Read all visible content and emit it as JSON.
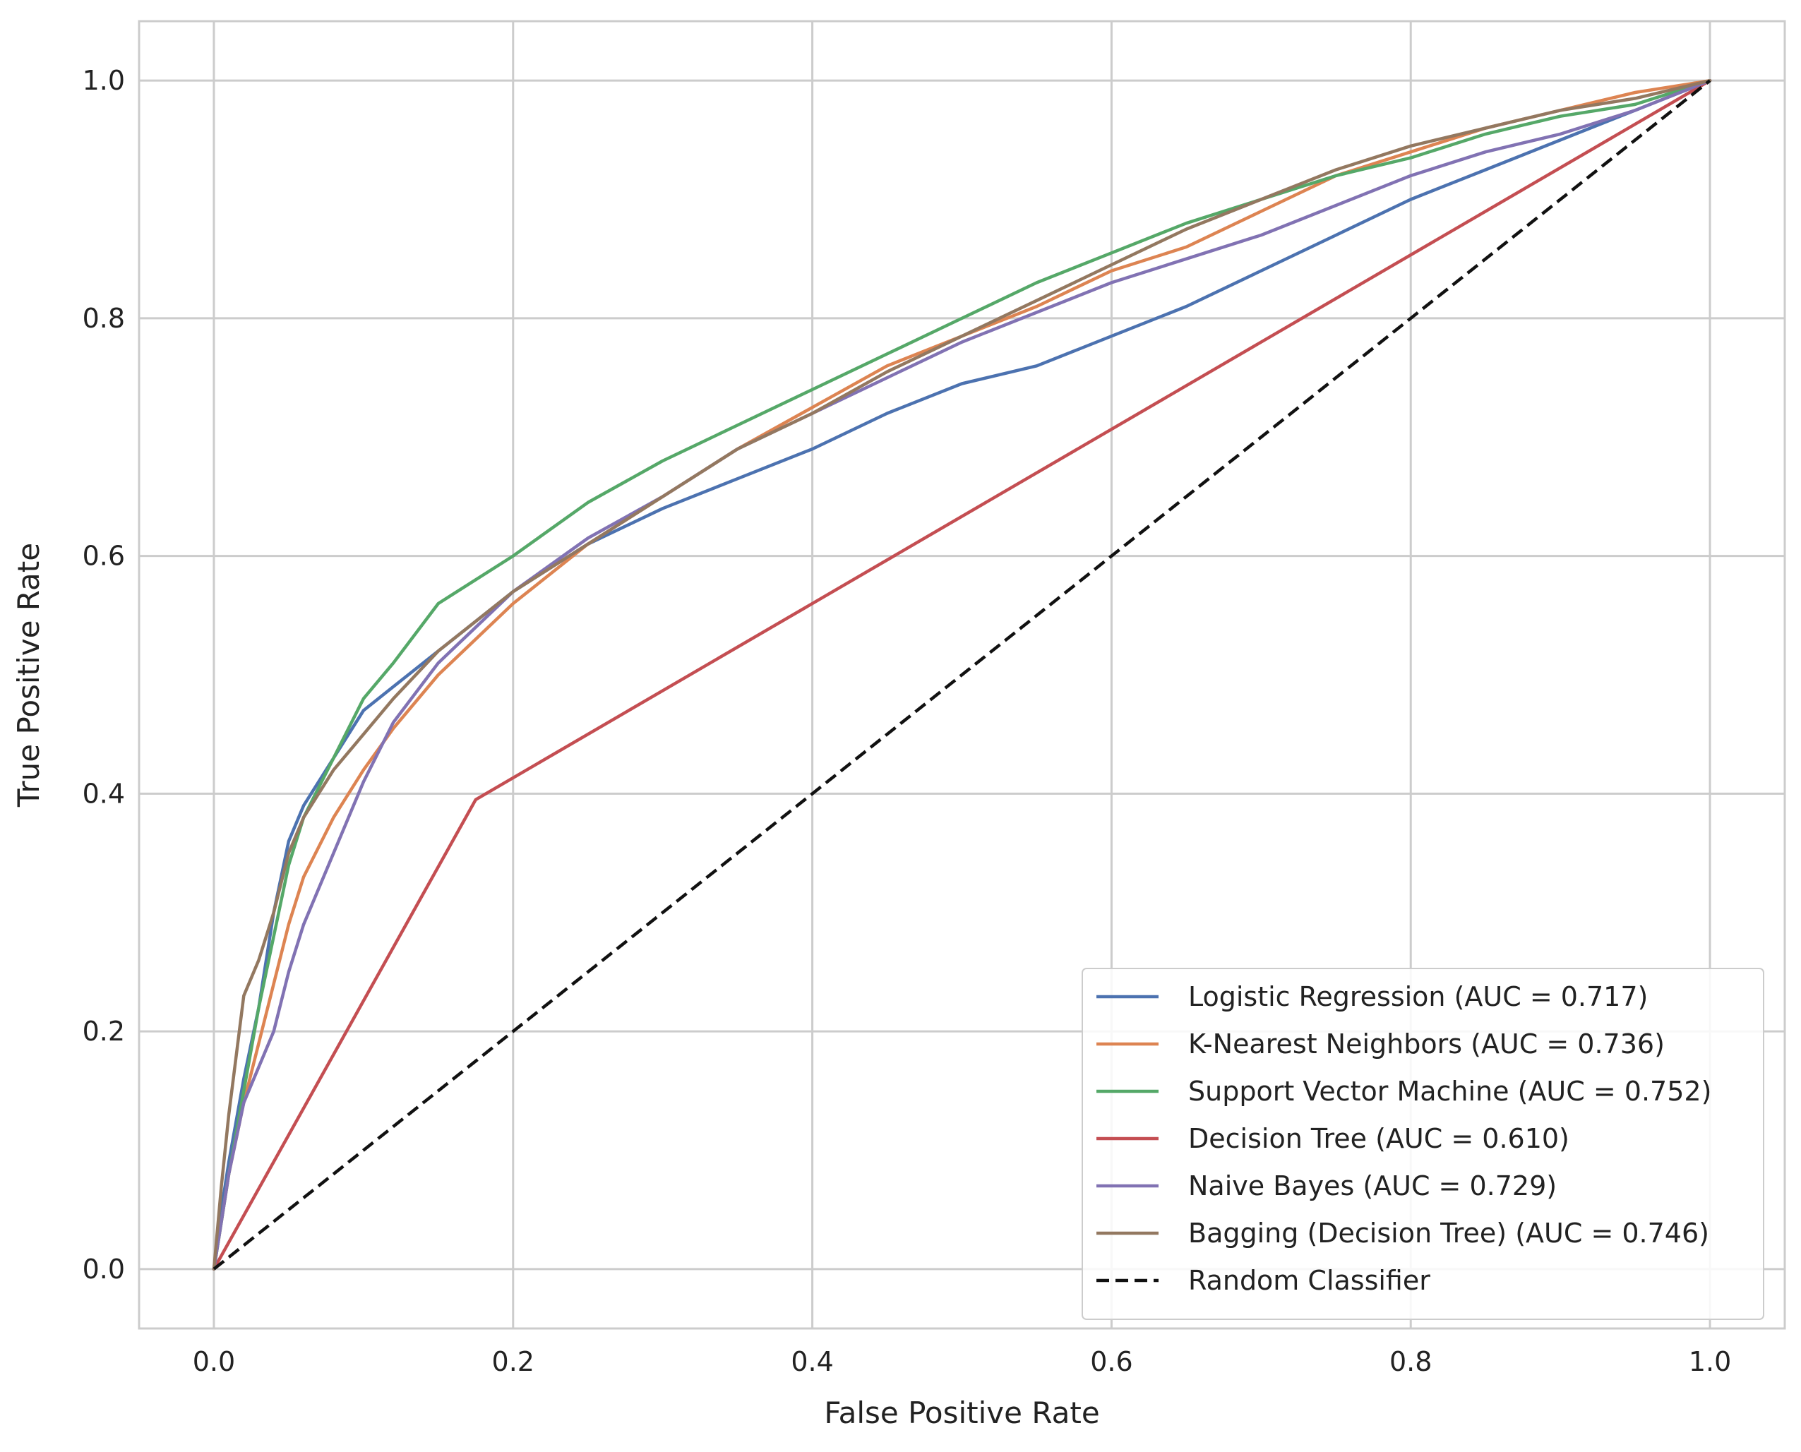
{
  "chart_data": {
    "type": "line",
    "title": "",
    "xlabel": "False Positive Rate",
    "ylabel": "True Positive Rate",
    "xlim": [
      -0.05,
      1.05
    ],
    "ylim": [
      -0.05,
      1.05
    ],
    "xticks": [
      0.0,
      0.2,
      0.4,
      0.6,
      0.8,
      1.0
    ],
    "yticks": [
      0.0,
      0.2,
      0.4,
      0.6,
      0.8,
      1.0
    ],
    "xtick_labels": [
      "0.0",
      "0.2",
      "0.4",
      "0.6",
      "0.8",
      "1.0"
    ],
    "ytick_labels": [
      "0.0",
      "0.2",
      "0.4",
      "0.6",
      "0.8",
      "1.0"
    ],
    "grid": true,
    "legend_position": "bottom-right",
    "series": [
      {
        "name": "Logistic Regression (AUC = 0.717)",
        "color": "#4c72b0",
        "style": "solid",
        "x": [
          0,
          0.005,
          0.01,
          0.02,
          0.03,
          0.04,
          0.05,
          0.06,
          0.08,
          0.1,
          0.12,
          0.15,
          0.2,
          0.25,
          0.3,
          0.35,
          0.4,
          0.45,
          0.5,
          0.55,
          0.6,
          0.65,
          0.7,
          0.75,
          0.8,
          0.85,
          0.9,
          0.95,
          1.0
        ],
        "y": [
          0,
          0.05,
          0.09,
          0.16,
          0.22,
          0.3,
          0.36,
          0.39,
          0.43,
          0.47,
          0.49,
          0.52,
          0.57,
          0.61,
          0.64,
          0.665,
          0.69,
          0.72,
          0.745,
          0.76,
          0.785,
          0.81,
          0.84,
          0.87,
          0.9,
          0.925,
          0.95,
          0.975,
          1.0
        ]
      },
      {
        "name": "K-Nearest Neighbors (AUC = 0.736)",
        "color": "#dd8452",
        "style": "solid",
        "x": [
          0,
          0.005,
          0.01,
          0.02,
          0.03,
          0.04,
          0.05,
          0.06,
          0.08,
          0.1,
          0.12,
          0.15,
          0.2,
          0.25,
          0.3,
          0.35,
          0.4,
          0.45,
          0.5,
          0.55,
          0.6,
          0.65,
          0.7,
          0.75,
          0.8,
          0.85,
          0.9,
          0.95,
          1.0
        ],
        "y": [
          0,
          0.04,
          0.08,
          0.14,
          0.19,
          0.24,
          0.29,
          0.33,
          0.38,
          0.42,
          0.455,
          0.5,
          0.56,
          0.61,
          0.65,
          0.69,
          0.725,
          0.76,
          0.785,
          0.81,
          0.84,
          0.86,
          0.89,
          0.92,
          0.94,
          0.96,
          0.975,
          0.99,
          1.0
        ]
      },
      {
        "name": "Support Vector Machine (AUC = 0.752)",
        "color": "#55a868",
        "style": "solid",
        "x": [
          0,
          0.005,
          0.01,
          0.02,
          0.03,
          0.04,
          0.05,
          0.06,
          0.08,
          0.1,
          0.12,
          0.15,
          0.2,
          0.25,
          0.3,
          0.35,
          0.4,
          0.45,
          0.5,
          0.55,
          0.6,
          0.65,
          0.7,
          0.75,
          0.8,
          0.85,
          0.9,
          0.95,
          1.0
        ],
        "y": [
          0,
          0.04,
          0.08,
          0.15,
          0.22,
          0.28,
          0.34,
          0.38,
          0.43,
          0.48,
          0.51,
          0.56,
          0.6,
          0.645,
          0.68,
          0.71,
          0.74,
          0.77,
          0.8,
          0.83,
          0.855,
          0.88,
          0.9,
          0.92,
          0.935,
          0.955,
          0.97,
          0.98,
          1.0
        ]
      },
      {
        "name": "Decision Tree (AUC = 0.610)",
        "color": "#c44e52",
        "style": "solid",
        "x": [
          0,
          0.175,
          1.0
        ],
        "y": [
          0,
          0.395,
          1.0
        ]
      },
      {
        "name": "Naive Bayes (AUC = 0.729)",
        "color": "#8172b3",
        "style": "solid",
        "x": [
          0,
          0.005,
          0.01,
          0.02,
          0.03,
          0.04,
          0.05,
          0.06,
          0.08,
          0.1,
          0.12,
          0.15,
          0.2,
          0.25,
          0.3,
          0.35,
          0.4,
          0.45,
          0.5,
          0.55,
          0.6,
          0.65,
          0.7,
          0.75,
          0.8,
          0.85,
          0.9,
          0.95,
          1.0
        ],
        "y": [
          0,
          0.04,
          0.08,
          0.14,
          0.17,
          0.2,
          0.25,
          0.29,
          0.35,
          0.41,
          0.46,
          0.51,
          0.57,
          0.615,
          0.65,
          0.69,
          0.72,
          0.75,
          0.78,
          0.805,
          0.83,
          0.85,
          0.87,
          0.895,
          0.92,
          0.94,
          0.955,
          0.975,
          1.0
        ]
      },
      {
        "name": "Bagging (Decision Tree) (AUC = 0.746)",
        "color": "#937860",
        "style": "solid",
        "x": [
          0,
          0.005,
          0.01,
          0.02,
          0.03,
          0.04,
          0.05,
          0.06,
          0.08,
          0.1,
          0.12,
          0.15,
          0.2,
          0.25,
          0.3,
          0.35,
          0.4,
          0.45,
          0.5,
          0.55,
          0.6,
          0.65,
          0.7,
          0.75,
          0.8,
          0.85,
          0.9,
          0.95,
          1.0
        ],
        "y": [
          0,
          0.07,
          0.13,
          0.23,
          0.26,
          0.3,
          0.35,
          0.38,
          0.42,
          0.45,
          0.48,
          0.52,
          0.57,
          0.61,
          0.65,
          0.69,
          0.72,
          0.755,
          0.785,
          0.815,
          0.845,
          0.875,
          0.9,
          0.925,
          0.945,
          0.96,
          0.975,
          0.985,
          1.0
        ]
      },
      {
        "name": "Random Classifier",
        "color": "#111111",
        "style": "dashed",
        "x": [
          0,
          1.0
        ],
        "y": [
          0,
          1.0
        ]
      }
    ]
  }
}
